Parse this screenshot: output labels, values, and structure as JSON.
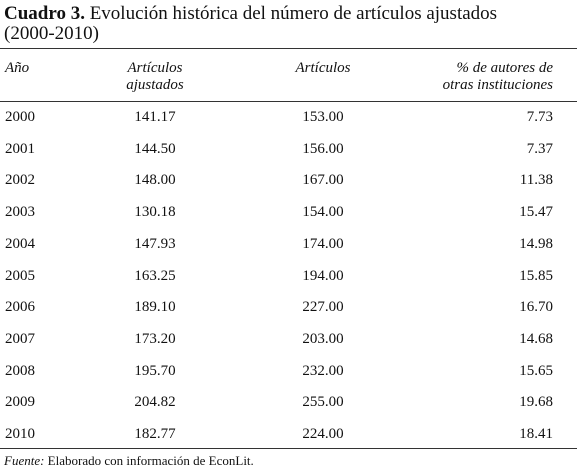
{
  "title": {
    "label": "Cuadro 3.",
    "text": "Evolución histórica del número de artículos ajustados (2000-2010)"
  },
  "table": {
    "headers": [
      [
        "Año"
      ],
      [
        "Artículos",
        "ajustados"
      ],
      [
        "Artículos"
      ],
      [
        "% de autores de",
        "otras instituciones"
      ]
    ],
    "rows": [
      [
        "2000",
        "141.17",
        "153.00",
        "7.73"
      ],
      [
        "2001",
        "144.50",
        "156.00",
        "7.37"
      ],
      [
        "2002",
        "148.00",
        "167.00",
        "11.38"
      ],
      [
        "2003",
        "130.18",
        "154.00",
        "15.47"
      ],
      [
        "2004",
        "147.93",
        "174.00",
        "14.98"
      ],
      [
        "2005",
        "163.25",
        "194.00",
        "15.85"
      ],
      [
        "2006",
        "189.10",
        "227.00",
        "16.70"
      ],
      [
        "2007",
        "173.20",
        "203.00",
        "14.68"
      ],
      [
        "2008",
        "195.70",
        "232.00",
        "15.65"
      ],
      [
        "2009",
        "204.82",
        "255.00",
        "19.68"
      ],
      [
        "2010",
        "182.77",
        "224.00",
        "18.41"
      ]
    ]
  },
  "source": {
    "label": "Fuente:",
    "text": "Elaborado con información de EconLit."
  }
}
